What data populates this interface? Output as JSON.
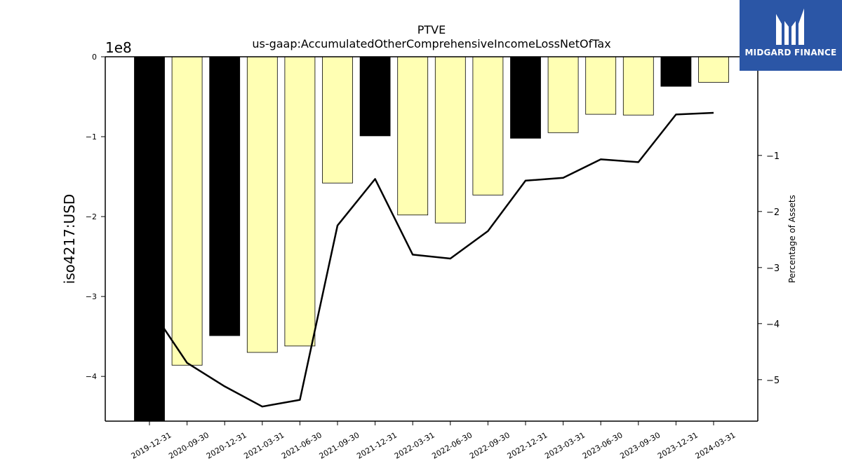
{
  "chart_data": {
    "type": "bar+line",
    "title": "PTVE",
    "subtitle": "us-gaap:AccumulatedOtherComprehensiveIncomeLossNetOfTax",
    "ylabel": "iso4217:USD",
    "y2label": "Percentage of Assets",
    "offset_label": "1e8",
    "categories": [
      "2019-12-31",
      "2020-09-30",
      "2020-12-31",
      "2021-03-31",
      "2021-06-30",
      "2021-09-30",
      "2021-12-31",
      "2022-03-31",
      "2022-06-30",
      "2022-09-30",
      "2022-12-31",
      "2023-03-31",
      "2023-06-30",
      "2023-09-30",
      "2023-12-31",
      "2024-03-31"
    ],
    "bar_values": [
      -4.56,
      -3.86,
      -3.49,
      -3.7,
      -3.62,
      -1.58,
      -0.99,
      -1.98,
      -2.08,
      -1.73,
      -1.02,
      -0.95,
      -0.72,
      -0.73,
      -0.37,
      -0.32
    ],
    "bar_colors": [
      "#000000",
      "#ffffb3",
      "#000000",
      "#ffffb3",
      "#ffffb3",
      "#ffffb3",
      "#000000",
      "#ffffb3",
      "#ffffb3",
      "#ffffb3",
      "#000000",
      "#ffffb3",
      "#ffffb3",
      "#ffffb3",
      "#000000",
      "#ffffb3"
    ],
    "line_values": [
      -3.7,
      -4.7,
      -5.12,
      -5.48,
      -5.36,
      -2.25,
      -1.42,
      -2.77,
      -2.84,
      -2.35,
      -1.45,
      -1.4,
      -1.07,
      -1.12,
      -0.27,
      -0.24
    ],
    "ylim": [
      -4.56,
      0
    ],
    "y2lim": [
      -5.74,
      0.76
    ],
    "yticks": [
      0,
      -1,
      -2,
      -3,
      -4
    ],
    "y2ticks": [
      -1,
      -2,
      -3,
      -4,
      -5
    ],
    "ytick_labels": [
      "0",
      "−1",
      "−2",
      "−3",
      "−4"
    ],
    "y2tick_labels": [
      "−1",
      "−2",
      "−3",
      "−4",
      "−5"
    ],
    "grid": false
  },
  "logo": {
    "text": "MIDGARD FINANCE",
    "background": "#2b56a6"
  }
}
